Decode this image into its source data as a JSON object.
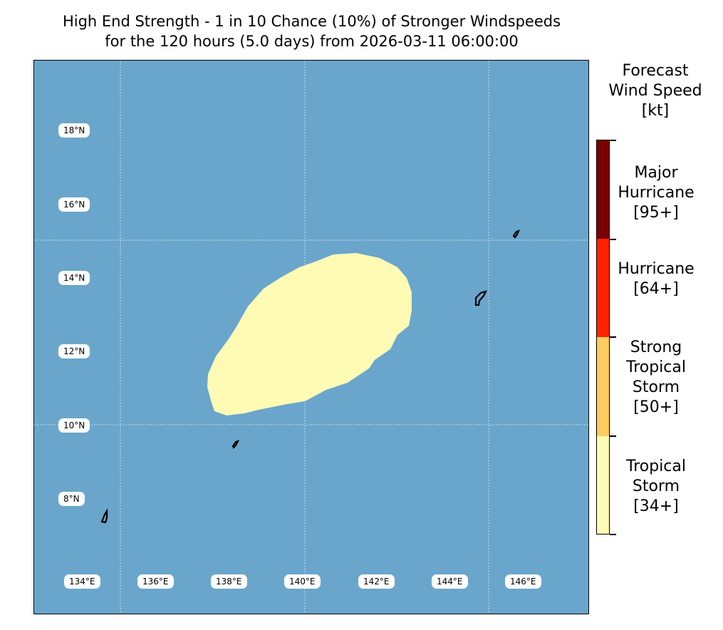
{
  "title": {
    "line1": "High End Strength - 1 in 10 Chance (10%) of Stronger Windspeeds",
    "line2": "for the 120 hours (5.0 days) from 2026-03-11 06:00:00"
  },
  "map": {
    "ocean_color": "#6aa6cb",
    "swath_color": "#fffbb5",
    "land_outline_color": "#000000",
    "lat_labels": [
      "18°N",
      "16°N",
      "14°N",
      "12°N",
      "10°N",
      "8°N"
    ],
    "lon_labels": [
      "134°E",
      "136°E",
      "138°E",
      "140°E",
      "142°E",
      "144°E",
      "146°E"
    ]
  },
  "colorbar": {
    "title_lines": [
      "Forecast",
      "Wind Speed",
      "[kt]"
    ],
    "categories": [
      {
        "lines": [
          "Major",
          "Hurricane",
          "[95+]"
        ],
        "color": "#7a0000"
      },
      {
        "lines": [
          "Hurricane",
          "[64+]"
        ],
        "color": "#ff2200"
      },
      {
        "lines": [
          "Strong",
          "Tropical",
          "Storm",
          "[50+]"
        ],
        "color": "#fecb5f"
      },
      {
        "lines": [
          "Tropical",
          "Storm",
          "[34+]"
        ],
        "color": "#fffbb5"
      }
    ]
  }
}
